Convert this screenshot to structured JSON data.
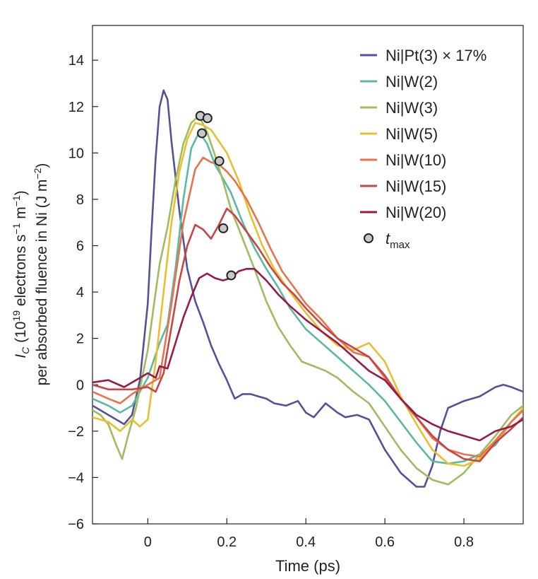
{
  "chart_data": {
    "type": "line",
    "xlabel": "Time (ps)",
    "ylabel_line1_parts": [
      "I",
      "C",
      " (10",
      "19",
      " electrons s",
      "−1",
      " m",
      "−1",
      ")"
    ],
    "ylabel_line2_parts": [
      "per absorbed fluence in Ni (J m",
      "−2",
      ")"
    ],
    "xlim": [
      -0.14,
      0.95
    ],
    "ylim": [
      -6,
      15.5
    ],
    "xticks": [
      {
        "v": 0,
        "label": "0"
      },
      {
        "v": 0.2,
        "label": "0.2"
      },
      {
        "v": 0.4,
        "label": "0.4"
      },
      {
        "v": 0.6,
        "label": "0.6"
      },
      {
        "v": 0.8,
        "label": "0.8"
      }
    ],
    "yticks": [
      {
        "v": -6,
        "label": "−6"
      },
      {
        "v": -4,
        "label": "−4"
      },
      {
        "v": -2,
        "label": "−2"
      },
      {
        "v": 0,
        "label": "0"
      },
      {
        "v": 2,
        "label": "2"
      },
      {
        "v": 4,
        "label": "4"
      },
      {
        "v": 6,
        "label": "6"
      },
      {
        "v": 8,
        "label": "8"
      },
      {
        "v": 10,
        "label": "10"
      },
      {
        "v": 12,
        "label": "12"
      },
      {
        "v": 14,
        "label": "14"
      }
    ],
    "legend_position": "top-right",
    "marker_legend": {
      "label_main": "t",
      "label_sub": "max",
      "fill": "#c8c8c8",
      "stroke": "#222222"
    },
    "series": [
      {
        "name": "Ni|Pt(3) × 17%",
        "color": "#55509a",
        "x": [
          -0.14,
          -0.12,
          -0.1,
          -0.08,
          -0.06,
          -0.04,
          -0.02,
          0.0,
          0.01,
          0.02,
          0.03,
          0.04,
          0.05,
          0.06,
          0.08,
          0.1,
          0.12,
          0.14,
          0.16,
          0.18,
          0.2,
          0.22,
          0.24,
          0.26,
          0.28,
          0.3,
          0.32,
          0.35,
          0.38,
          0.4,
          0.42,
          0.45,
          0.48,
          0.5,
          0.53,
          0.56,
          0.6,
          0.64,
          0.68,
          0.7,
          0.72,
          0.74,
          0.76,
          0.8,
          0.84,
          0.88,
          0.9,
          0.92,
          0.95
        ],
        "y": [
          -0.9,
          -1.1,
          -1.3,
          -1.5,
          -1.7,
          -1.3,
          0.2,
          3.5,
          6.8,
          9.8,
          12.0,
          12.7,
          12.3,
          10.5,
          7.5,
          5.0,
          3.6,
          2.7,
          1.7,
          0.9,
          0.2,
          -0.6,
          -0.4,
          -0.4,
          -0.5,
          -0.6,
          -0.8,
          -0.9,
          -0.7,
          -1.2,
          -1.4,
          -0.8,
          -1.2,
          -1.4,
          -1.3,
          -1.5,
          -2.8,
          -3.8,
          -4.4,
          -4.4,
          -3.5,
          -2.0,
          -1.0,
          -0.7,
          -0.5,
          -0.1,
          0.0,
          -0.1,
          -0.3
        ]
      },
      {
        "name": "Ni|W(2)",
        "color": "#5ab9a5",
        "x": [
          -0.14,
          -0.1,
          -0.07,
          -0.04,
          0.0,
          0.03,
          0.05,
          0.07,
          0.09,
          0.11,
          0.13,
          0.15,
          0.17,
          0.19,
          0.21,
          0.24,
          0.27,
          0.3,
          0.33,
          0.36,
          0.4,
          0.44,
          0.48,
          0.52,
          0.56,
          0.6,
          0.64,
          0.68,
          0.72,
          0.76,
          0.8,
          0.84,
          0.88,
          0.92,
          0.95
        ],
        "y": [
          -0.6,
          -0.9,
          -1.2,
          -0.9,
          0.3,
          1.8,
          2.6,
          5.0,
          8.0,
          10.2,
          10.9,
          10.4,
          9.5,
          8.9,
          8.3,
          7.0,
          5.9,
          5.0,
          4.2,
          3.3,
          2.4,
          1.8,
          1.2,
          0.6,
          0.0,
          -0.7,
          -1.6,
          -2.5,
          -3.3,
          -3.4,
          -3.3,
          -3.0,
          -2.6,
          -1.6,
          -1.1
        ]
      },
      {
        "name": "Ni|W(3)",
        "color": "#9fbc5f",
        "x": [
          -0.14,
          -0.12,
          -0.1,
          -0.08,
          -0.065,
          -0.05,
          -0.03,
          0.0,
          0.02,
          0.03,
          0.05,
          0.07,
          0.09,
          0.11,
          0.13,
          0.15,
          0.17,
          0.19,
          0.21,
          0.24,
          0.27,
          0.3,
          0.33,
          0.36,
          0.39,
          0.42,
          0.45,
          0.48,
          0.52,
          0.56,
          0.6,
          0.64,
          0.68,
          0.72,
          0.76,
          0.8,
          0.84,
          0.88,
          0.92,
          0.95
        ],
        "y": [
          -1.1,
          -1.3,
          -1.7,
          -2.6,
          -3.2,
          -2.2,
          -1.0,
          1.5,
          4.0,
          5.2,
          6.8,
          8.8,
          10.4,
          11.3,
          11.6,
          10.9,
          9.9,
          8.8,
          7.6,
          6.3,
          5.0,
          3.6,
          2.5,
          1.7,
          1.0,
          0.8,
          0.6,
          0.3,
          -0.3,
          -0.8,
          -1.8,
          -2.8,
          -3.6,
          -4.1,
          -4.3,
          -3.8,
          -3.0,
          -2.2,
          -1.3,
          -0.9
        ]
      },
      {
        "name": "Ni|W(5)",
        "color": "#e8bf2c",
        "x": [
          -0.14,
          -0.1,
          -0.07,
          -0.04,
          -0.02,
          0.0,
          0.02,
          0.04,
          0.06,
          0.08,
          0.1,
          0.12,
          0.14,
          0.16,
          0.18,
          0.2,
          0.23,
          0.26,
          0.29,
          0.32,
          0.36,
          0.4,
          0.44,
          0.48,
          0.52,
          0.56,
          0.6,
          0.64,
          0.68,
          0.72,
          0.76,
          0.8,
          0.84,
          0.88,
          0.92,
          0.95
        ],
        "y": [
          -1.4,
          -1.6,
          -2.0,
          -1.5,
          -1.8,
          -1.5,
          1.0,
          4.0,
          7.0,
          9.2,
          10.6,
          11.3,
          11.2,
          11.0,
          10.5,
          10.0,
          8.8,
          7.3,
          6.0,
          5.0,
          4.0,
          3.1,
          2.3,
          1.7,
          1.5,
          1.8,
          1.0,
          -0.5,
          -1.7,
          -2.8,
          -3.4,
          -3.5,
          -3.2,
          -2.5,
          -1.6,
          -1.0
        ]
      },
      {
        "name": "Ni|W(10)",
        "color": "#e8734a",
        "x": [
          -0.14,
          -0.1,
          -0.07,
          -0.04,
          0.0,
          0.03,
          0.06,
          0.09,
          0.12,
          0.14,
          0.16,
          0.18,
          0.2,
          0.22,
          0.25,
          0.28,
          0.31,
          0.34,
          0.37,
          0.4,
          0.44,
          0.48,
          0.52,
          0.56,
          0.6,
          0.64,
          0.68,
          0.72,
          0.76,
          0.8,
          0.84,
          0.88,
          0.92,
          0.95
        ],
        "y": [
          -0.3,
          -0.6,
          -0.8,
          -0.4,
          0.0,
          0.3,
          3.5,
          7.0,
          9.3,
          9.8,
          9.6,
          9.5,
          9.2,
          8.8,
          8.0,
          7.0,
          5.9,
          4.9,
          4.2,
          3.5,
          2.8,
          2.0,
          1.4,
          1.2,
          0.3,
          -0.6,
          -1.4,
          -2.3,
          -2.8,
          -3.0,
          -3.1,
          -2.4,
          -1.6,
          -1.1
        ]
      },
      {
        "name": "Ni|W(15)",
        "color": "#c94545",
        "x": [
          -0.14,
          -0.1,
          -0.07,
          -0.04,
          0.0,
          0.02,
          0.04,
          0.06,
          0.08,
          0.1,
          0.12,
          0.14,
          0.16,
          0.18,
          0.2,
          0.22,
          0.25,
          0.28,
          0.31,
          0.34,
          0.37,
          0.4,
          0.44,
          0.48,
          0.52,
          0.56,
          0.6,
          0.64,
          0.68,
          0.72,
          0.76,
          0.8,
          0.84,
          0.88,
          0.92,
          0.95
        ],
        "y": [
          0.0,
          -0.2,
          -0.2,
          -0.2,
          -0.1,
          -0.3,
          0.5,
          2.5,
          4.5,
          6.0,
          6.9,
          6.7,
          6.3,
          6.9,
          7.6,
          7.3,
          6.6,
          5.9,
          5.1,
          4.4,
          3.9,
          3.3,
          2.6,
          2.0,
          1.6,
          1.2,
          0.4,
          -0.6,
          -1.4,
          -2.2,
          -2.8,
          -3.2,
          -3.3,
          -2.5,
          -1.9,
          -1.4
        ]
      },
      {
        "name": "Ni|W(20)",
        "color": "#9a1a47",
        "x": [
          -0.14,
          -0.1,
          -0.06,
          -0.03,
          0.0,
          0.02,
          0.03,
          0.05,
          0.07,
          0.09,
          0.11,
          0.13,
          0.15,
          0.17,
          0.19,
          0.21,
          0.23,
          0.25,
          0.27,
          0.3,
          0.33,
          0.36,
          0.4,
          0.44,
          0.48,
          0.52,
          0.56,
          0.6,
          0.64,
          0.68,
          0.72,
          0.76,
          0.8,
          0.84,
          0.88,
          0.92,
          0.95
        ],
        "y": [
          0.1,
          0.2,
          -0.1,
          0.2,
          0.5,
          0.3,
          0.8,
          0.7,
          1.8,
          2.9,
          3.8,
          4.6,
          4.8,
          4.6,
          4.5,
          4.6,
          4.9,
          5.0,
          5.0,
          4.5,
          3.9,
          3.4,
          2.8,
          2.3,
          1.8,
          1.2,
          0.6,
          0.2,
          -0.6,
          -1.3,
          -1.7,
          -2.0,
          -2.2,
          -2.4,
          -2.0,
          -1.8,
          -1.5
        ]
      }
    ],
    "t_max": [
      {
        "series": "Ni|W(3)",
        "x": 0.133,
        "y": 11.6
      },
      {
        "series": "Ni|W(5)",
        "x": 0.151,
        "y": 11.5
      },
      {
        "series": "Ni|W(2)",
        "x": 0.137,
        "y": 10.85
      },
      {
        "series": "Ni|W(10)",
        "x": 0.181,
        "y": 9.65
      },
      {
        "series": "Ni|W(15)",
        "x": 0.191,
        "y": 6.75
      },
      {
        "series": "Ni|W(20)",
        "x": 0.211,
        "y": 4.72
      }
    ]
  }
}
